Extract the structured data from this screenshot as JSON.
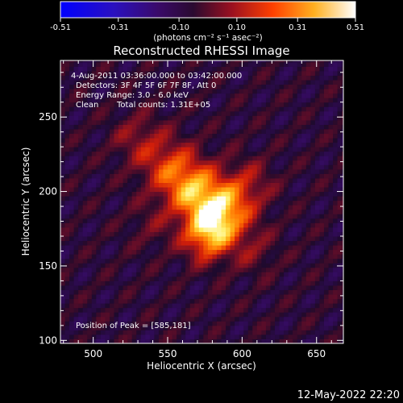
{
  "colorbar": {
    "ticks": [
      "-0.51",
      "-0.31",
      "-0.10",
      "0.10",
      "0.31",
      "0.51"
    ],
    "unit_label": "(photons cm⁻² s⁻¹ asec⁻²)"
  },
  "title": "Reconstructed RHESSI Image",
  "annotations": {
    "time_range": "4-Aug-2011 03:36:00.000 to 03:42:00.000",
    "detectors": "Detectors: 3F 4F 5F 6F 7F 8F, Att 0",
    "energy_range": "Energy Range: 3.0 - 6.0 keV",
    "method": "Clean",
    "total_counts": "Total counts: 1.31E+05",
    "peak": "Position of Peak = [585,181]"
  },
  "footer_date": "12-May-2022 22:20",
  "colors": {
    "background": "#000000",
    "text": "#ffffff",
    "colormap": [
      "#0000ff",
      "#3a0a8a",
      "#1a0a2e",
      "#6a0a3a",
      "#e02000",
      "#ff9000",
      "#ffff60",
      "#ffffff"
    ]
  },
  "chart_data": {
    "type": "heatmap",
    "title": "Reconstructed RHESSI Image",
    "xlabel": "Heliocentric X (arcsec)",
    "ylabel": "Heliocentric Y (arcsec)",
    "xlim": [
      478,
      668
    ],
    "ylim": [
      98,
      288
    ],
    "x_ticks": [
      500,
      550,
      600,
      650
    ],
    "y_ticks": [
      100,
      150,
      200,
      250
    ],
    "value_range": [
      -0.51,
      0.51
    ],
    "peak_position": [
      585,
      181
    ]
  }
}
